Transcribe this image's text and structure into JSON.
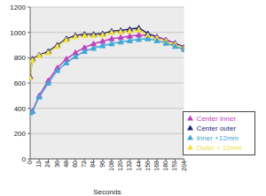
{
  "chart_data": {
    "type": "line",
    "x_label": "Seconds",
    "x": [
      0,
      3,
      12,
      24,
      36,
      48,
      60,
      72,
      84,
      96,
      108,
      120,
      132,
      144,
      156,
      168,
      180,
      192,
      204
    ],
    "series": [
      {
        "name": "Center outer",
        "color": "#1f1f7a",
        "marker": "triangle",
        "values": [
          650,
          790,
          820,
          850,
          900,
          950,
          975,
          985,
          985,
          990,
          1010,
          1015,
          1025,
          1035,
          990,
          965,
          940,
          915,
          885
        ]
      },
      {
        "name": "Center Inner",
        "color": "#c040c0",
        "marker": "triangle",
        "values": [
          370,
          380,
          500,
          620,
          720,
          790,
          840,
          880,
          910,
          930,
          950,
          960,
          970,
          980,
          975,
          960,
          940,
          910,
          880
        ]
      },
      {
        "name": "Outer + 12mm",
        "color": "#f0e040",
        "marker": "triangle",
        "values": [
          640,
          780,
          815,
          840,
          890,
          940,
          965,
          975,
          975,
          980,
          1000,
          1005,
          1010,
          1020,
          975,
          955,
          930,
          905,
          875
        ]
      },
      {
        "name": "Inner +12mm",
        "color": "#40a8d8",
        "marker": "triangle",
        "values": [
          365,
          375,
          490,
          600,
          700,
          760,
          810,
          850,
          875,
          895,
          910,
          925,
          935,
          945,
          950,
          935,
          915,
          890,
          865
        ]
      }
    ],
    "xlim": [
      0,
      204
    ],
    "xticks": [
      0,
      12,
      24,
      36,
      48,
      60,
      72,
      84,
      96,
      108,
      120,
      132,
      144,
      156,
      168,
      180,
      192,
      204
    ],
    "ylim": [
      0,
      1200
    ],
    "yticks": [
      0,
      200,
      400,
      600,
      800,
      1000,
      1200
    ],
    "grid": true,
    "legend": "lower right"
  }
}
